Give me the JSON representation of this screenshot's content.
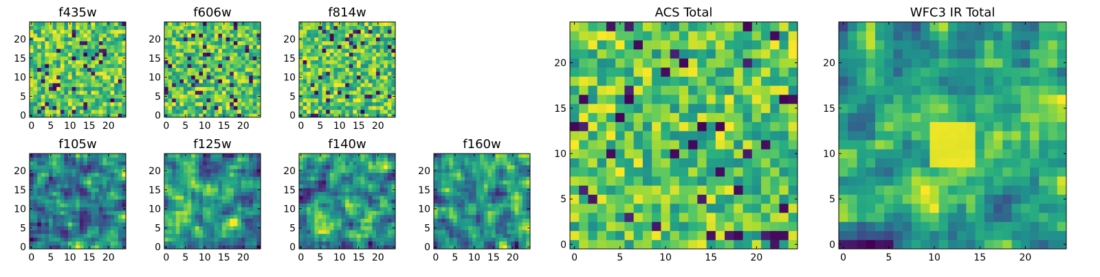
{
  "figure": {
    "panels": [
      {
        "title": "f435w",
        "xticks": [
          "0",
          "5",
          "10",
          "15",
          "20"
        ],
        "yticks": [
          "0",
          "5",
          "10",
          "15",
          "20"
        ]
      },
      {
        "title": "f606w",
        "xticks": [
          "0",
          "5",
          "10",
          "15",
          "20"
        ],
        "yticks": [
          "0",
          "5",
          "10",
          "15",
          "20"
        ]
      },
      {
        "title": "f814w",
        "xticks": [
          "0",
          "5",
          "10",
          "15",
          "20"
        ],
        "yticks": [
          "0",
          "5",
          "10",
          "15",
          "20"
        ]
      },
      {
        "title": "f105w",
        "xticks": [
          "0",
          "5",
          "10",
          "15",
          "20"
        ],
        "yticks": [
          "0",
          "5",
          "10",
          "15",
          "20"
        ]
      },
      {
        "title": "f125w",
        "xticks": [
          "0",
          "5",
          "10",
          "15",
          "20"
        ],
        "yticks": [
          "0",
          "5",
          "10",
          "15",
          "20"
        ]
      },
      {
        "title": "f140w",
        "xticks": [
          "0",
          "5",
          "10",
          "15",
          "20"
        ],
        "yticks": [
          "0",
          "5",
          "10",
          "15",
          "20"
        ]
      },
      {
        "title": "f160w",
        "xticks": [
          "0",
          "5",
          "10",
          "15",
          "20"
        ],
        "yticks": [
          "0",
          "5",
          "10",
          "15",
          "20"
        ]
      },
      {
        "title": "ACS Total",
        "xticks": [
          "0",
          "5",
          "10",
          "15",
          "20"
        ],
        "yticks": [
          "0",
          "5",
          "10",
          "15",
          "20"
        ]
      },
      {
        "title": "WFC3 IR Total",
        "xticks": [
          "0",
          "5",
          "10",
          "15",
          "20"
        ],
        "yticks": [
          "0",
          "5",
          "10",
          "15",
          "20"
        ]
      }
    ]
  },
  "chart_data": [
    {
      "type": "heatmap",
      "title": "f435w",
      "xlabel": "",
      "ylabel": "",
      "xlim": [
        0,
        25
      ],
      "ylim": [
        0,
        25
      ],
      "grid_size": [
        25,
        25
      ],
      "colormap": "viridis",
      "smooth": false,
      "seed": 11
    },
    {
      "type": "heatmap",
      "title": "f606w",
      "xlabel": "",
      "ylabel": "",
      "xlim": [
        0,
        25
      ],
      "ylim": [
        0,
        25
      ],
      "grid_size": [
        25,
        25
      ],
      "colormap": "viridis",
      "smooth": false,
      "seed": 23
    },
    {
      "type": "heatmap",
      "title": "f814w",
      "xlabel": "",
      "ylabel": "",
      "xlim": [
        0,
        25
      ],
      "ylim": [
        0,
        25
      ],
      "grid_size": [
        25,
        25
      ],
      "colormap": "viridis",
      "smooth": false,
      "seed": 37
    },
    {
      "type": "heatmap",
      "title": "f105w",
      "xlabel": "",
      "ylabel": "",
      "xlim": [
        0,
        25
      ],
      "ylim": [
        0,
        25
      ],
      "grid_size": [
        25,
        25
      ],
      "colormap": "viridis",
      "smooth": true,
      "seed": 41
    },
    {
      "type": "heatmap",
      "title": "f125w",
      "xlabel": "",
      "ylabel": "",
      "xlim": [
        0,
        25
      ],
      "ylim": [
        0,
        25
      ],
      "grid_size": [
        25,
        25
      ],
      "colormap": "viridis",
      "smooth": true,
      "seed": 53
    },
    {
      "type": "heatmap",
      "title": "f140w",
      "xlabel": "",
      "ylabel": "",
      "xlim": [
        0,
        25
      ],
      "ylim": [
        0,
        25
      ],
      "grid_size": [
        25,
        25
      ],
      "colormap": "viridis",
      "smooth": true,
      "seed": 67
    },
    {
      "type": "heatmap",
      "title": "f160w",
      "xlabel": "",
      "ylabel": "",
      "xlim": [
        0,
        25
      ],
      "ylim": [
        0,
        25
      ],
      "grid_size": [
        25,
        25
      ],
      "colormap": "viridis",
      "smooth": true,
      "seed": 79
    },
    {
      "type": "heatmap",
      "title": "ACS Total",
      "xlabel": "",
      "ylabel": "",
      "xlim": [
        0,
        25
      ],
      "ylim": [
        0,
        25
      ],
      "grid_size": [
        25,
        25
      ],
      "colormap": "viridis",
      "smooth": false,
      "seed": 83
    },
    {
      "type": "heatmap",
      "title": "WFC3 IR Total",
      "xlabel": "",
      "ylabel": "",
      "xlim": [
        0,
        25
      ],
      "ylim": [
        0,
        25
      ],
      "grid_size": [
        25,
        25
      ],
      "colormap": "viridis",
      "smooth": true,
      "seed": 97,
      "highlight_region": {
        "x": [
          10,
          15
        ],
        "y": [
          9,
          14
        ]
      }
    }
  ]
}
